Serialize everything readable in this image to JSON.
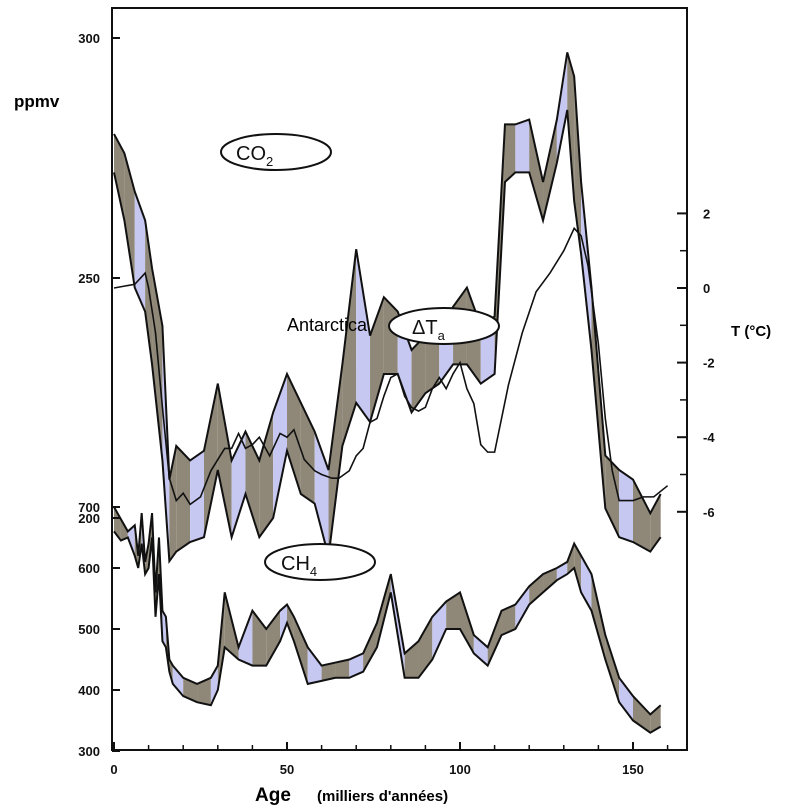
{
  "chart_data": {
    "type": "line",
    "title": "",
    "xlabel": "Age",
    "xlabel_note": "(milliers d'années)",
    "xlim": [
      0,
      162
    ],
    "x_ticks": [
      {
        "v": 0,
        "label": "0"
      },
      {
        "v": 50,
        "label": "50"
      },
      {
        "v": 100,
        "label": "100"
      },
      {
        "v": 150,
        "label": "150"
      }
    ],
    "co2_axis": {
      "unit_label": "ppmv",
      "range": [
        190,
        300
      ],
      "ticks": [
        {
          "v": 300,
          "label": "300"
        },
        {
          "v": 250,
          "label": "250"
        },
        {
          "v": 200,
          "label": "200"
        }
      ]
    },
    "temp_axis": {
      "unit_label": "T (°C)",
      "range": [
        -6,
        2
      ],
      "ticks": [
        {
          "v": 2,
          "label": "2"
        },
        {
          "v": 0,
          "label": "0"
        },
        {
          "v": -2,
          "label": "-2"
        },
        {
          "v": -4,
          "label": "-4"
        },
        {
          "v": -6,
          "label": "-6"
        }
      ]
    },
    "ch4_axis": {
      "range": [
        300,
        700
      ],
      "ticks": [
        {
          "v": 700,
          "label": "700"
        },
        {
          "v": 600,
          "label": "600"
        },
        {
          "v": 500,
          "label": "500"
        },
        {
          "v": 400,
          "label": "400"
        },
        {
          "v": 300,
          "label": "300"
        }
      ]
    },
    "grid": false,
    "band_colors": {
      "dark": "#8f8878",
      "light": "#c7c8f2",
      "line": "#111111"
    },
    "series": [
      {
        "name": "CO2",
        "label_main": "CO",
        "label_sub": "2",
        "kind": "band",
        "axis": "co2",
        "x": [
          0,
          3,
          6,
          9,
          11,
          14,
          16,
          18,
          22,
          26,
          30,
          34,
          38,
          42,
          46,
          50,
          54,
          58,
          62,
          66,
          70,
          74,
          78,
          82,
          86,
          90,
          94,
          98,
          102,
          106,
          110,
          113,
          116,
          120,
          124,
          128,
          131,
          133,
          135,
          138,
          142,
          146,
          150,
          155,
          158
        ],
        "upper": [
          280,
          276,
          268,
          262,
          252,
          240,
          208,
          215,
          212,
          214,
          228,
          212,
          218,
          212,
          222,
          230,
          224,
          218,
          210,
          232,
          256,
          238,
          246,
          243,
          235,
          238,
          238,
          244,
          248,
          240,
          242,
          282,
          282,
          283,
          270,
          283,
          297,
          292,
          270,
          248,
          213,
          210,
          208,
          201,
          205
        ],
        "lower": [
          272,
          262,
          248,
          243,
          232,
          212,
          191,
          193,
          195,
          196,
          210,
          196,
          205,
          196,
          200,
          214,
          205,
          203,
          192,
          215,
          224,
          220,
          230,
          230,
          222,
          226,
          228,
          232,
          232,
          228,
          230,
          270,
          272,
          272,
          262,
          274,
          285,
          266,
          255,
          235,
          202,
          196,
          195,
          193,
          196
        ]
      },
      {
        "name": "",
        "kind": "line",
        "axis": "temp",
        "x": [
          0,
          3,
          6,
          8,
          9,
          10,
          12,
          14,
          16,
          18,
          20,
          22,
          25,
          28,
          30,
          32,
          34,
          36,
          38,
          40,
          42,
          45,
          48,
          50,
          52,
          55,
          58,
          60,
          63,
          65,
          68,
          70,
          72,
          74,
          76,
          78,
          80,
          82,
          84,
          86,
          88,
          90,
          92,
          94,
          96,
          98,
          100,
          102,
          104,
          106,
          108,
          110,
          114,
          118,
          122,
          126,
          130,
          133,
          135,
          137,
          140,
          142,
          144,
          146,
          148,
          150,
          153,
          156,
          160
        ],
        "y": [
          0,
          0.05,
          0.1,
          0.3,
          0.4,
          0,
          -1.2,
          -3.2,
          -5.1,
          -5.7,
          -5.5,
          -5.8,
          -5.6,
          -4.9,
          -4.6,
          -4.3,
          -4.3,
          -3.9,
          -4.3,
          -4.2,
          -4.0,
          -4.5,
          -3.9,
          -4.0,
          -3.8,
          -4.6,
          -4.9,
          -5.0,
          -5.1,
          -5.1,
          -4.9,
          -4.5,
          -4.3,
          -3.6,
          -3.5,
          -2.9,
          -2.4,
          -2.3,
          -2.9,
          -3.2,
          -3.3,
          -3.2,
          -2.7,
          -2.4,
          -2.7,
          -2.3,
          -2.0,
          -2.7,
          -3.1,
          -4.2,
          -4.4,
          -4.4,
          -2.6,
          -1.2,
          -0.1,
          0.4,
          1.0,
          1.6,
          1.4,
          0.6,
          -1.5,
          -3.5,
          -4.9,
          -5.7,
          -5.7,
          -5.7,
          -5.6,
          -5.6,
          -5.3
        ]
      },
      {
        "name": "CH4",
        "label_main": "CH",
        "label_sub": "4",
        "kind": "band",
        "axis": "ch4",
        "x": [
          0,
          2,
          4,
          6,
          7,
          8,
          9,
          10,
          11,
          12,
          13,
          14,
          15,
          16,
          17,
          20,
          24,
          28,
          30,
          32,
          36,
          40,
          44,
          48,
          50,
          52,
          56,
          60,
          64,
          68,
          72,
          76,
          80,
          84,
          88,
          92,
          96,
          100,
          104,
          108,
          112,
          116,
          120,
          124,
          128,
          131,
          133,
          135,
          138,
          142,
          146,
          150,
          155,
          158
        ],
        "upper": [
          700,
          680,
          660,
          670,
          620,
          690,
          610,
          640,
          690,
          560,
          650,
          530,
          520,
          450,
          440,
          420,
          410,
          420,
          440,
          560,
          470,
          530,
          500,
          530,
          540,
          520,
          470,
          440,
          445,
          450,
          460,
          510,
          590,
          460,
          480,
          520,
          545,
          560,
          490,
          470,
          530,
          540,
          570,
          590,
          600,
          610,
          640,
          620,
          590,
          490,
          420,
          390,
          360,
          375
        ],
        "lower": [
          660,
          645,
          650,
          620,
          600,
          640,
          590,
          600,
          650,
          520,
          590,
          480,
          470,
          430,
          410,
          390,
          380,
          375,
          400,
          470,
          450,
          440,
          440,
          480,
          510,
          480,
          410,
          415,
          420,
          420,
          430,
          470,
          560,
          420,
          420,
          450,
          500,
          500,
          460,
          440,
          490,
          500,
          540,
          560,
          580,
          590,
          600,
          560,
          530,
          450,
          380,
          350,
          330,
          340
        ]
      }
    ],
    "annotations": [
      "Antarctica"
    ]
  },
  "labels": {
    "antarctica": "Antarctica",
    "delta": "ΔT",
    "delta_sub": "a"
  }
}
